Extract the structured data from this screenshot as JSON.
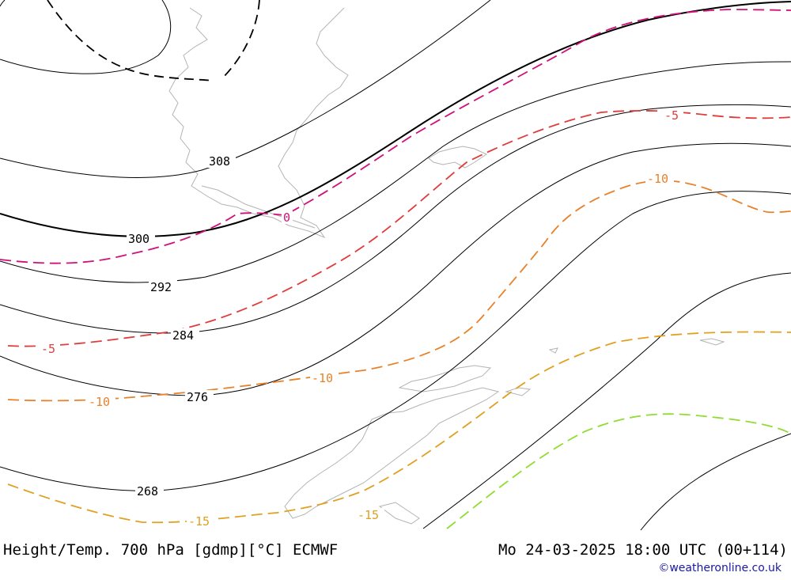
{
  "map": {
    "contour_labels": {
      "h308": "308",
      "h300": "300",
      "h292": "292",
      "h284": "284",
      "h276": "276",
      "h268": "268",
      "t0": "0",
      "t_5a": "-5",
      "t_5b": "-5",
      "t_10a": "-10",
      "t_10b": "-10",
      "t_10c": "-10",
      "t_15a": "-15",
      "t_15b": "-15"
    },
    "colors": {
      "height_contour": "#000000",
      "coastline": "#b4b4b4",
      "temp_0": "#d0107a",
      "temp_minus5": "#e03c3c",
      "temp_minus10": "#e8822a",
      "temp_minus15": "#e0a020",
      "temp_minus20": "#90dc30"
    }
  },
  "footer": {
    "title": "Height/Temp. 700 hPa [gdmp][°C] ECMWF",
    "datetime": "Mo 24-03-2025 18:00 UTC (00+114)",
    "credit": "©weatheronline.co.uk"
  }
}
